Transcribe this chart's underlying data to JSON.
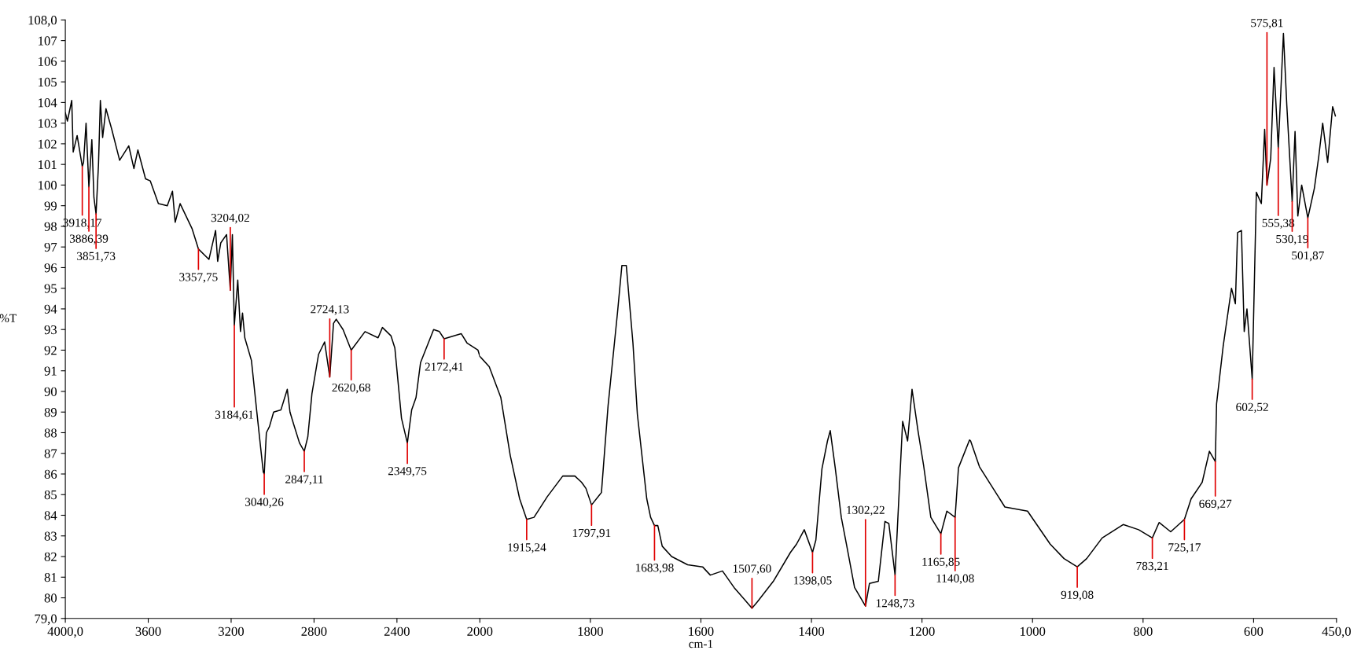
{
  "chart_data": [
    {
      "type": "line",
      "ylabel": "%T",
      "xlim": [
        4000,
        2000
      ],
      "xticks": [
        {
          "value": 4000,
          "label": "4000,0"
        },
        3600,
        3200,
        2800,
        2400,
        2000
      ],
      "ylim": [
        79,
        108
      ],
      "yticks": [
        {
          "value": 79,
          "label": "79,0"
        },
        80,
        81,
        82,
        83,
        84,
        85,
        86,
        87,
        88,
        89,
        90,
        91,
        92,
        93,
        94,
        95,
        96,
        97,
        98,
        99,
        100,
        101,
        102,
        103,
        104,
        105,
        106,
        107,
        {
          "value": 108,
          "label": "108,0"
        }
      ],
      "grid": false,
      "marker": "none",
      "line_style": "solid",
      "series": [
        {
          "color": "#000000",
          "x": [
            4000,
            3990,
            3969,
            3962,
            3943,
            3918.17,
            3912,
            3900,
            3886.39,
            3872,
            3862,
            3851.73,
            3840,
            3831,
            3820,
            3804,
            3776,
            3738,
            3694,
            3669,
            3650,
            3613,
            3590,
            3551,
            3508,
            3483,
            3470,
            3446,
            3389,
            3357.75,
            3307,
            3275,
            3265,
            3250,
            3222,
            3204.02,
            3194,
            3184.61,
            3168,
            3155,
            3145,
            3134,
            3102,
            3077,
            3060,
            3045,
            3040.26,
            3030,
            3015,
            2995,
            2960,
            2929,
            2916,
            2898,
            2870,
            2847.11,
            2830,
            2810,
            2778,
            2749,
            2724.13,
            2706,
            2693,
            2660,
            2620.68,
            2554,
            2491,
            2470,
            2429,
            2410,
            2378,
            2349.75,
            2329,
            2308,
            2286,
            2223,
            2195,
            2172.41,
            2090,
            2062,
            2009,
            2000
          ],
          "values": [
            103.5,
            103.1,
            104.1,
            101.6,
            102.4,
            100.9,
            101.1,
            103.0,
            99.9,
            102.2,
            99.4,
            98.6,
            101.0,
            104.1,
            102.3,
            103.7,
            102.7,
            101.2,
            101.9,
            100.8,
            101.7,
            100.3,
            100.2,
            99.1,
            99.0,
            99.7,
            98.2,
            99.1,
            97.9,
            96.9,
            96.4,
            97.8,
            96.3,
            97.2,
            97.6,
            94.9,
            97.6,
            93.2,
            95.4,
            92.9,
            93.8,
            92.6,
            91.5,
            89.1,
            87.5,
            86.1,
            86.0,
            88.0,
            88.3,
            89.0,
            89.1,
            90.1,
            89.0,
            88.4,
            87.5,
            87.1,
            87.8,
            89.9,
            91.8,
            92.4,
            90.7,
            93.3,
            93.5,
            93.0,
            92.0,
            92.9,
            92.6,
            93.1,
            92.7,
            92.1,
            88.7,
            87.5,
            89.1,
            89.7,
            91.4,
            93.0,
            92.9,
            92.55,
            92.8,
            92.35,
            92.0,
            91.7
          ]
        }
      ],
      "annotations": [
        {
          "text": "3918,17",
          "x": 3918.17,
          "y": 100.9
        },
        {
          "text": "3886,39",
          "x": 3886.39,
          "y": 99.9
        },
        {
          "text": "3851,73",
          "x": 3851.73,
          "y": 98.6
        },
        {
          "text": "3357,75",
          "x": 3357.75,
          "y": 96.9
        },
        {
          "text": "3204,02",
          "x": 3204.02,
          "y": 94.9
        },
        {
          "text": "3184,61",
          "x": 3184.61,
          "y": 93.2
        },
        {
          "text": "3040,26",
          "x": 3040.26,
          "y": 86.0
        },
        {
          "text": "2847,11",
          "x": 2847.11,
          "y": 87.1
        },
        {
          "text": "2724,13",
          "x": 2724.13,
          "y": 90.7
        },
        {
          "text": "2620,68",
          "x": 2620.68,
          "y": 92.0
        },
        {
          "text": "2349,75",
          "x": 2349.75,
          "y": 87.5
        },
        {
          "text": "2172,41",
          "x": 2172.41,
          "y": 92.55
        }
      ]
    },
    {
      "type": "line",
      "xlabel": "cm-1",
      "xlim": [
        2000,
        450
      ],
      "xticks": [
        1800,
        1600,
        1400,
        1200,
        1000,
        800,
        600,
        {
          "value": 450,
          "label": "450,0"
        }
      ],
      "ylim": [
        79,
        108
      ],
      "tick_labels": "x",
      "grid": false,
      "marker": "none",
      "line_style": "solid",
      "series": [
        {
          "color": "#000000",
          "x": [
            2000,
            1983,
            1962,
            1945,
            1928,
            1915.24,
            1902,
            1878,
            1850,
            1828,
            1816,
            1808,
            1797.91,
            1780,
            1768,
            1751,
            1743,
            1735,
            1723,
            1715,
            1698,
            1691,
            1683.98,
            1678,
            1670,
            1653,
            1624,
            1597,
            1583,
            1561,
            1540,
            1507.6,
            1498,
            1469,
            1438,
            1427,
            1413,
            1398.05,
            1392,
            1381,
            1371,
            1366,
            1357,
            1346,
            1336,
            1322,
            1302.22,
            1295,
            1279,
            1267,
            1260,
            1248.73,
            1235,
            1226,
            1218,
            1207,
            1197,
            1184,
            1165.85,
            1155,
            1140.08,
            1134,
            1114,
            1112,
            1096,
            1050,
            1009,
            968,
            943,
            919.08,
            902,
            874,
            836,
            808,
            783.21,
            771,
            750,
            725.17,
            713,
            693,
            680,
            669.27,
            667,
            655,
            640,
            633,
            629,
            622,
            617,
            612,
            602.52,
            595,
            586,
            580,
            575.81,
            569,
            563,
            555.38,
            546,
            540,
            530.19,
            525,
            520,
            513,
            501.87,
            490,
            482,
            475,
            466,
            457,
            452
          ],
          "values": [
            91.7,
            91.2,
            89.7,
            86.9,
            84.8,
            83.8,
            83.9,
            84.9,
            85.9,
            85.9,
            85.6,
            85.3,
            84.5,
            85.1,
            89.3,
            93.8,
            96.1,
            96.1,
            92.35,
            88.9,
            84.8,
            83.9,
            83.5,
            83.5,
            82.5,
            82.0,
            81.6,
            81.5,
            81.1,
            81.3,
            80.5,
            79.5,
            79.8,
            80.8,
            82.2,
            82.6,
            83.3,
            82.2,
            82.8,
            86.25,
            87.6,
            88.1,
            86.3,
            83.9,
            82.5,
            80.5,
            79.6,
            80.7,
            80.8,
            83.7,
            83.6,
            81.1,
            88.55,
            87.6,
            90.1,
            88.05,
            86.4,
            83.9,
            83.1,
            84.2,
            83.9,
            86.3,
            87.65,
            87.6,
            86.35,
            84.4,
            84.2,
            82.6,
            81.9,
            81.5,
            81.9,
            82.9,
            83.55,
            83.3,
            82.9,
            83.65,
            83.2,
            83.8,
            84.8,
            85.6,
            87.1,
            86.6,
            89.4,
            92.2,
            95.0,
            94.25,
            97.7,
            97.8,
            92.9,
            94.0,
            90.6,
            99.65,
            99.1,
            102.7,
            100.0,
            101.3,
            105.7,
            101.8,
            107.35,
            103.9,
            99.2,
            102.6,
            98.5,
            100.0,
            98.4,
            99.85,
            101.4,
            103.0,
            101.1,
            103.8,
            103.35
          ]
        }
      ],
      "annotations": [
        {
          "text": "1915,24",
          "x": 1915.24,
          "y": 83.8
        },
        {
          "text": "1797,91",
          "x": 1797.91,
          "y": 84.5
        },
        {
          "text": "1683,98",
          "x": 1683.98,
          "y": 83.5
        },
        {
          "text": "1507,60",
          "x": 1507.6,
          "y": 79.5
        },
        {
          "text": "1398,05",
          "x": 1398.05,
          "y": 82.2
        },
        {
          "text": "1302,22",
          "x": 1302.22,
          "y": 79.6
        },
        {
          "text": "1248,73",
          "x": 1248.73,
          "y": 81.1
        },
        {
          "text": "1165,85",
          "x": 1165.85,
          "y": 83.1
        },
        {
          "text": "1140,08",
          "x": 1140.08,
          "y": 83.9
        },
        {
          "text": "919,08",
          "x": 919.08,
          "y": 81.5
        },
        {
          "text": "783,21",
          "x": 783.21,
          "y": 82.9
        },
        {
          "text": "725,17",
          "x": 725.17,
          "y": 83.8
        },
        {
          "text": "669,27",
          "x": 669.27,
          "y": 86.6
        },
        {
          "text": "602,52",
          "x": 602.52,
          "y": 90.6
        },
        {
          "text": "575,81",
          "x": 575.81,
          "y": 100.0
        },
        {
          "text": "555,38",
          "x": 555.38,
          "y": 101.8
        },
        {
          "text": "530,19",
          "x": 530.19,
          "y": 99.2
        },
        {
          "text": "501,87",
          "x": 501.87,
          "y": 98.4
        }
      ]
    }
  ]
}
